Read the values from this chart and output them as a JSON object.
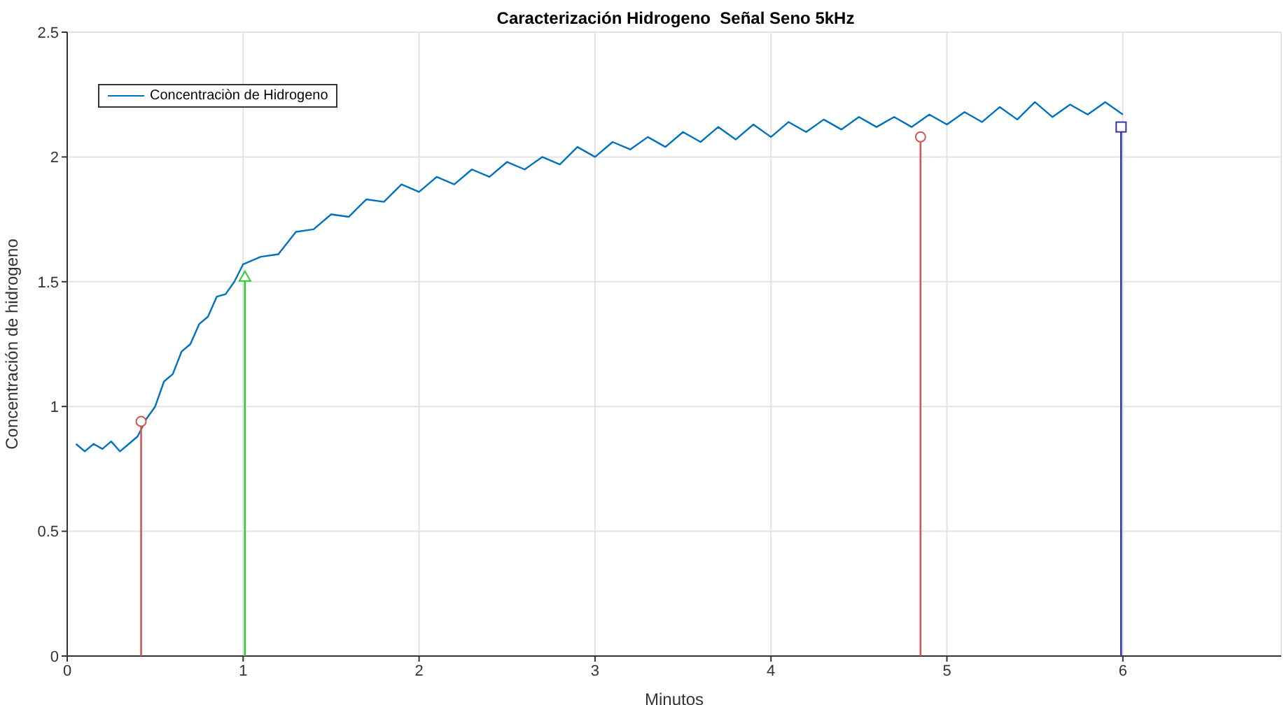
{
  "chart_data": {
    "type": "line",
    "title": "Caracterización Hidrogeno  Señal Seno 5kHz",
    "xlabel": "Minutos",
    "ylabel": "Concentración de hidrogeno",
    "xlim": [
      0,
      6.9
    ],
    "xticks": [
      0,
      1,
      2,
      3,
      4,
      5,
      6
    ],
    "ylim": [
      0,
      2.5
    ],
    "yticks": [
      0,
      0.5,
      1,
      1.5,
      2,
      2.5
    ],
    "grid": true,
    "legend": "top left",
    "marker": "none",
    "series": [
      {
        "name": "Concentraciòn de Hidrogeno",
        "color": "#0072bd",
        "x": [
          0.05,
          0.1,
          0.15,
          0.2,
          0.25,
          0.3,
          0.35,
          0.4,
          0.45,
          0.5,
          0.55,
          0.6,
          0.65,
          0.7,
          0.75,
          0.8,
          0.85,
          0.9,
          0.95,
          1.0,
          1.1,
          1.2,
          1.3,
          1.4,
          1.5,
          1.6,
          1.7,
          1.8,
          1.9,
          2.0,
          2.1,
          2.2,
          2.3,
          2.4,
          2.5,
          2.6,
          2.7,
          2.8,
          2.9,
          3.0,
          3.1,
          3.2,
          3.3,
          3.4,
          3.5,
          3.6,
          3.7,
          3.8,
          3.9,
          4.0,
          4.1,
          4.2,
          4.3,
          4.4,
          4.5,
          4.6,
          4.7,
          4.8,
          4.9,
          5.0,
          5.1,
          5.2,
          5.3,
          5.4,
          5.5,
          5.6,
          5.7,
          5.8,
          5.9,
          6.0
        ],
        "values": [
          0.85,
          0.82,
          0.85,
          0.83,
          0.86,
          0.82,
          0.85,
          0.88,
          0.95,
          1.0,
          1.1,
          1.13,
          1.22,
          1.25,
          1.33,
          1.36,
          1.44,
          1.45,
          1.5,
          1.57,
          1.6,
          1.61,
          1.7,
          1.71,
          1.77,
          1.76,
          1.83,
          1.82,
          1.89,
          1.86,
          1.92,
          1.89,
          1.95,
          1.92,
          1.98,
          1.95,
          2.0,
          1.97,
          2.04,
          2.0,
          2.06,
          2.03,
          2.08,
          2.04,
          2.1,
          2.06,
          2.12,
          2.07,
          2.13,
          2.08,
          2.14,
          2.1,
          2.15,
          2.11,
          2.16,
          2.12,
          2.16,
          2.12,
          2.17,
          2.13,
          2.18,
          2.14,
          2.2,
          2.15,
          2.22,
          2.16,
          2.21,
          2.17,
          2.22,
          2.17
        ]
      },
      {
        "type": "lollipop",
        "color": "#d95356",
        "marker": "circle",
        "x": [
          0.42,
          4.85
        ],
        "values": [
          0.94,
          2.08
        ]
      },
      {
        "type": "lollipop",
        "color": "#33cc33",
        "marker": "triangle",
        "x": [
          1.01
        ],
        "values": [
          1.52
        ]
      },
      {
        "type": "lollipop",
        "color": "#3333aa",
        "marker": "square",
        "x": [
          5.99
        ],
        "values": [
          2.12
        ]
      }
    ]
  }
}
